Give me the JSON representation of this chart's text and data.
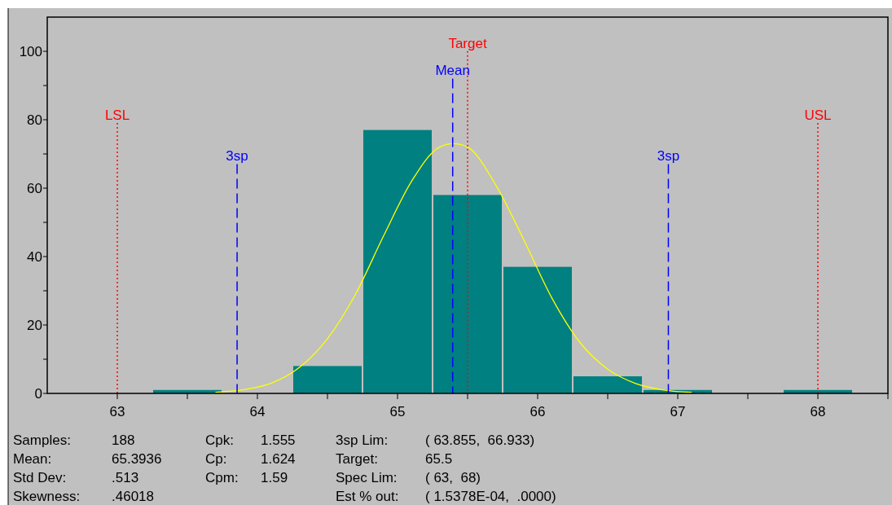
{
  "chart_data": {
    "type": "histogram",
    "xlim": [
      62.5,
      68.5
    ],
    "ylim": [
      0,
      110
    ],
    "xticks": [
      63,
      {
        "value": 63.5,
        "label": null
      },
      64,
      {
        "value": 64.5,
        "label": null
      },
      65,
      {
        "value": 65.5,
        "label": null
      },
      66,
      {
        "value": 66.5,
        "label": null
      },
      67,
      {
        "value": 67.5,
        "label": null
      },
      68,
      {
        "value": 68.5,
        "label": null
      }
    ],
    "yticks": [
      0,
      {
        "value": 10,
        "label": null
      },
      20,
      {
        "value": 30,
        "label": null
      },
      40,
      {
        "value": 50,
        "label": null
      },
      60,
      {
        "value": 70,
        "label": null
      },
      80,
      {
        "value": 90,
        "label": null
      },
      100
    ],
    "grid": false,
    "series": [
      {
        "type": "histogram",
        "color": "#008080",
        "bins": [
          63.25,
          63.75,
          64.25,
          64.75,
          65.25,
          65.75,
          66.25,
          66.75,
          67.25,
          67.75,
          68.25
        ],
        "values": [
          1,
          0,
          8,
          77,
          58,
          37,
          5,
          1,
          0,
          1
        ]
      },
      {
        "type": "line",
        "color": "#ffff00",
        "x": [
          63.7,
          63.9,
          64.1,
          64.3,
          64.5,
          64.7,
          64.9,
          65.1,
          65.3,
          65.4,
          65.5,
          65.7,
          65.9,
          66.1,
          66.3,
          66.5,
          66.7,
          66.9,
          67.1
        ],
        "values": [
          0.3,
          1.1,
          3,
          7.6,
          16,
          29,
          46,
          62,
          72,
          73,
          72,
          61,
          45,
          28,
          15,
          7.1,
          2.9,
          1,
          0.3
        ]
      }
    ],
    "ref_lines": [
      {
        "axis": "x",
        "value": 63,
        "label": "LSL",
        "color": "#ff0000",
        "line_style": "dotted"
      },
      {
        "axis": "x",
        "value": 68,
        "label": "USL",
        "color": "#ff0000",
        "line_style": "dotted"
      },
      {
        "axis": "x",
        "value": 65.5,
        "label": "Target",
        "color": "#ff0000",
        "line_style": "dotted"
      },
      {
        "axis": "x",
        "value": 65.3936,
        "label": "Mean",
        "color": "#0000ff",
        "line_style": "dashed"
      },
      {
        "axis": "x",
        "value": 63.855,
        "label": "3sp",
        "color": "#0000ff",
        "line_style": "dashed"
      },
      {
        "axis": "x",
        "value": 66.933,
        "label": "3sp",
        "color": "#0000ff",
        "line_style": "dashed"
      }
    ],
    "annotations": [
      "Samples:",
      "188",
      "Mean:",
      "65.3936",
      "Std Dev:",
      ".513",
      "Skewness:",
      ".46018",
      "Cpk:",
      "1.555",
      "Cp:",
      "1.624",
      "Cpm:",
      "1.59",
      "3sp Lim:",
      "( 63.855,  66.933)",
      "Target:",
      "65.5",
      "Spec Lim:",
      "( 63,  68)",
      "Est % out:",
      "( 1.5378E-04,  .0000)"
    ]
  }
}
